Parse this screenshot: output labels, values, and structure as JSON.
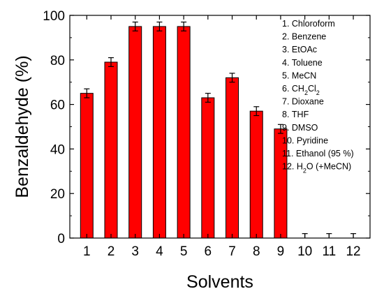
{
  "chart_data": {
    "type": "bar",
    "xlabel": "Solvents",
    "ylabel": "Benzaldehyde (%)",
    "ylim": [
      0,
      100
    ],
    "yticks": [
      "0",
      "20",
      "40",
      "60",
      "80",
      "100"
    ],
    "categories": [
      "1",
      "2",
      "3",
      "4",
      "5",
      "6",
      "7",
      "8",
      "9",
      "10",
      "11",
      "12"
    ],
    "values": [
      65,
      79,
      95,
      95,
      95,
      63,
      72,
      57,
      49,
      0,
      0,
      0
    ],
    "errors": [
      2,
      2,
      2,
      2,
      2,
      2,
      2,
      2,
      2,
      2,
      2,
      2
    ],
    "bar_color": "#ff0000",
    "legend_position": "top-right",
    "legend": [
      {
        "num": "1.",
        "label": "Chloroform"
      },
      {
        "num": "2.",
        "label": "Benzene"
      },
      {
        "num": "3.",
        "label": "EtOAc"
      },
      {
        "num": "4.",
        "label": "Toluene"
      },
      {
        "num": "5.",
        "label": "MeCN"
      },
      {
        "num": "6.",
        "label": "CH2Cl2"
      },
      {
        "num": "7.",
        "label": "Dioxane"
      },
      {
        "num": "8.",
        "label": "THF"
      },
      {
        "num": "9.",
        "label": "DMSO"
      },
      {
        "num": "10.",
        "label": "Pyridine"
      },
      {
        "num": "11.",
        "label": "Ethanol (95 %)"
      },
      {
        "num": "12.",
        "label": "H2O (+MeCN)"
      }
    ]
  }
}
